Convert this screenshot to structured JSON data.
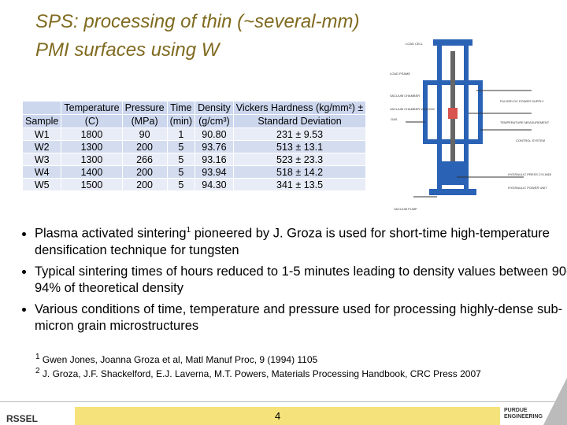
{
  "header": {
    "title_line1": "SPS: processing of thin (~several-mm)",
    "title_line2": "PMI surfaces using W"
  },
  "table": {
    "header": [
      [
        "",
        "Sample"
      ],
      [
        "Temperature",
        "(C)"
      ],
      [
        "Pressure",
        "(MPa)"
      ],
      [
        "Time",
        "(min)"
      ],
      [
        "Density",
        "(g/cm³)"
      ],
      [
        "Vickers Hardness (kg/mm²) ±",
        "Standard Deviation"
      ]
    ],
    "rows": [
      [
        "W1",
        "1800",
        "90",
        "1",
        "90.80",
        "231 ± 9.53"
      ],
      [
        "W2",
        "1300",
        "200",
        "5",
        "93.76",
        "513 ± 13.1"
      ],
      [
        "W3",
        "1300",
        "266",
        "5",
        "93.16",
        "523 ± 23.3"
      ],
      [
        "W4",
        "1400",
        "200",
        "5",
        "93.94",
        "518 ± 14.2"
      ],
      [
        "W5",
        "1500",
        "200",
        "5",
        "94.30",
        "341 ± 13.5"
      ]
    ]
  },
  "diagram": {
    "labels": [
      "LOAD CELL",
      "LOAD FRAME",
      "VACUUM CHAMBER",
      "VACUUM CHAMBER WINDOW",
      "PULSED DC POWER SUPPLY",
      "TEMPERATURE MEASUREMENT",
      "INERT GAS",
      "CONTROL SYSTEM",
      "HYDRAULIC PRESS CYLINDER",
      "HYDRAULIC POWER UNIT",
      "VACUUM PUMP"
    ]
  },
  "bullets": [
    {
      "text": "Plasma activated sintering",
      "sup": "1",
      "rest": " pioneered by J. Groza is used for short-time high-temperature densification technique for tungsten"
    },
    {
      "text": "Typical sintering times of hours reduced to 1-5 minutes leading to density values between 90-94% of theoretical density"
    },
    {
      "text": "Various conditions of time, temperature and pressure used for processing highly-dense sub-micron grain microstructures"
    }
  ],
  "footnotes": [
    {
      "mark": "1",
      "text": "Gwen Jones, Joanna Groza et al, Matl Manuf Proc, 9 (1994) 1105"
    },
    {
      "mark": "2",
      "text": "J. Groza, J.F. Shackelford, E.J. Laverna, M.T. Powers, Materials Processing Handbook, CRC Press 2007"
    }
  ],
  "footer": {
    "logo": "RSSEL",
    "page": "4",
    "brand": "PURDUE ENGINEERING"
  }
}
